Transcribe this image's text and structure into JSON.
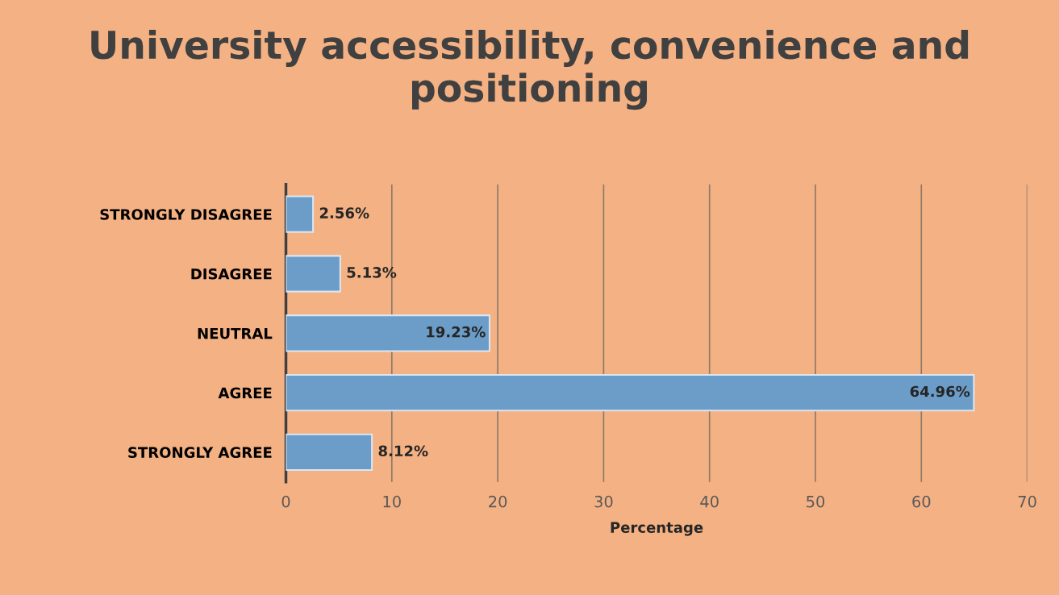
{
  "chart_data": {
    "type": "bar",
    "orientation": "horizontal",
    "title": "University accessibility, convenience and positioning",
    "xlabel": "Percentage",
    "categories": [
      "STRONGLY DISAGREE",
      "DISAGREE",
      "NEUTRAL",
      "AGREE",
      "STRONGLY AGREE"
    ],
    "values": [
      2.56,
      5.13,
      19.23,
      64.96,
      8.12
    ],
    "value_labels": [
      "2.56%",
      "5.13%",
      "19.23%",
      "64.96%",
      "8.12%"
    ],
    "color": "#6c9dc8",
    "xlim": [
      0,
      70
    ],
    "xticks": [
      0,
      10,
      20,
      30,
      40,
      50,
      60,
      70
    ],
    "grid": "x"
  }
}
